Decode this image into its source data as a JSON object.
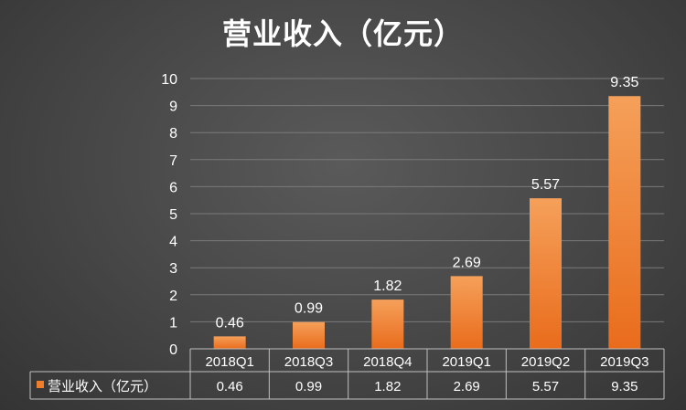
{
  "chart_data": {
    "type": "bar",
    "title": "营业收入（亿元）",
    "categories": [
      "2018Q1",
      "2018Q3",
      "2018Q4",
      "2019Q1",
      "2019Q2",
      "2019Q3"
    ],
    "series": [
      {
        "name": "营业收入（亿元）",
        "values": [
          0.46,
          0.99,
          1.82,
          2.69,
          5.57,
          9.35
        ],
        "labels": [
          "0.46",
          "0.99",
          "1.82",
          "2.69",
          "5.57",
          "9.35"
        ],
        "color": "#ee7d2c"
      }
    ],
    "ylim": [
      0,
      10
    ],
    "yticks": [
      "0",
      "1",
      "2",
      "3",
      "4",
      "5",
      "6",
      "7",
      "8",
      "9",
      "10"
    ],
    "grid": true,
    "legend": "data-table",
    "xlabel": "",
    "ylabel": ""
  },
  "colors": {
    "bar_top": "#f5a05a",
    "bar_bottom": "#e96c1c",
    "grid": "#7a7a7a",
    "table_border": "#bfbfbf",
    "text": "#ffffff"
  }
}
